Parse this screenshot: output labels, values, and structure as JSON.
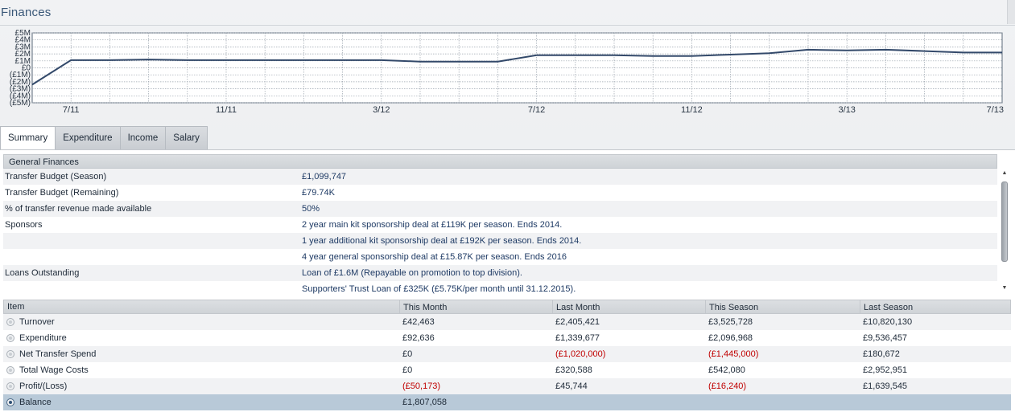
{
  "page": {
    "title": "Finances"
  },
  "chart_data": {
    "type": "line",
    "title": "",
    "xlabel": "",
    "ylabel": "",
    "x_ticks": [
      "7/11",
      "11/11",
      "3/12",
      "7/12",
      "11/12",
      "3/13",
      "7/13"
    ],
    "y_ticks": [
      "£5M",
      "£4M",
      "£3M",
      "£2M",
      "£1M",
      "£0",
      "(£1M)",
      "(£2M)",
      "(£3M)",
      "(£4M)",
      "(£5M)"
    ],
    "ylim": [
      -5,
      5
    ],
    "grid": true,
    "x": [
      "6/11",
      "7/11",
      "8/11",
      "9/11",
      "10/11",
      "11/11",
      "12/11",
      "1/12",
      "2/12",
      "3/12",
      "4/12",
      "5/12",
      "6/12",
      "7/12",
      "8/12",
      "9/12",
      "10/12",
      "11/12",
      "12/12",
      "1/13",
      "2/13",
      "3/13",
      "4/13",
      "5/13",
      "6/13",
      "7/13"
    ],
    "series": [
      {
        "name": "",
        "values": [
          -2.4,
          1.1,
          1.1,
          1.2,
          1.1,
          1.1,
          1.1,
          1.1,
          1.1,
          1.1,
          0.9,
          0.9,
          0.9,
          1.8,
          1.8,
          1.8,
          1.7,
          1.7,
          1.9,
          2.1,
          2.6,
          2.5,
          2.6,
          2.4,
          2.2,
          2.2
        ]
      }
    ],
    "color": "#33496a"
  },
  "tabs": [
    {
      "label": "Summary",
      "active": true
    },
    {
      "label": "Expenditure",
      "active": false
    },
    {
      "label": "Income",
      "active": false
    },
    {
      "label": "Salary",
      "active": false
    }
  ],
  "general_finances": {
    "header": "General Finances",
    "rows": [
      {
        "label": "Transfer Budget (Season)",
        "value": "£1,099,747"
      },
      {
        "label": "Transfer Budget (Remaining)",
        "value": "£79.74K"
      },
      {
        "label": "% of transfer revenue made available",
        "value": "50%"
      },
      {
        "label": "Sponsors",
        "value": "2 year main kit sponsorship deal at £119K per season. Ends 2014."
      },
      {
        "label": "",
        "value": "1 year additional kit sponsorship deal at £192K per season. Ends 2014."
      },
      {
        "label": "",
        "value": "4 year general sponsorship deal at £15.87K per season. Ends 2016"
      },
      {
        "label": "Loans Outstanding",
        "value": "Loan of £1.6M (Repayable on promotion to top division)."
      },
      {
        "label": "",
        "value": "Supporters' Trust Loan of £325K (£5.75K/per month until 31.12.2015)."
      }
    ]
  },
  "summary_table": {
    "headers": {
      "item": "Item",
      "this_month": "This Month",
      "last_month": "Last Month",
      "this_season": "This Season",
      "last_season": "Last Season"
    },
    "rows": [
      {
        "item": "Turnover",
        "this_month": "£42,463",
        "last_month": "£2,405,421",
        "this_season": "£3,525,728",
        "last_season": "£10,820,130",
        "selected": false
      },
      {
        "item": "Expenditure",
        "this_month": "£92,636",
        "last_month": "£1,339,677",
        "this_season": "£2,096,968",
        "last_season": "£9,536,457",
        "selected": false
      },
      {
        "item": "Net Transfer Spend",
        "this_month": "£0",
        "last_month": "(£1,020,000)",
        "this_season": "(£1,445,000)",
        "last_season": "£180,672",
        "selected": false
      },
      {
        "item": "Total Wage Costs",
        "this_month": "£0",
        "last_month": "£320,588",
        "this_season": "£542,080",
        "last_season": "£2,952,951",
        "selected": false
      },
      {
        "item": "Profit/(Loss)",
        "this_month": "(£50,173)",
        "last_month": "£45,744",
        "this_season": "(£16,240)",
        "last_season": "£1,639,545",
        "selected": false
      },
      {
        "item": "Balance",
        "this_month": "£1,807,058",
        "last_month": "",
        "this_season": "",
        "last_season": "",
        "selected": true
      }
    ]
  },
  "colors": {
    "negative": "#c00000",
    "accent": "#3a5878",
    "selected_row": "#b8c9d8"
  },
  "icons": {
    "scroll_up": "triangle-up-icon",
    "scroll_down": "triangle-down-icon",
    "row_radio": "radio-icon"
  }
}
